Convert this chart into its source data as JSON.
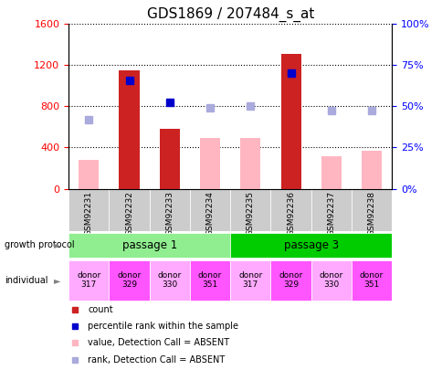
{
  "title": "GDS1869 / 207484_s_at",
  "samples": [
    "GSM92231",
    "GSM92232",
    "GSM92233",
    "GSM92234",
    "GSM92235",
    "GSM92236",
    "GSM92237",
    "GSM92238"
  ],
  "count_values": [
    null,
    1150,
    580,
    null,
    null,
    1310,
    null,
    null
  ],
  "count_absent_values": [
    280,
    null,
    null,
    490,
    490,
    null,
    320,
    370
  ],
  "percentile_present": [
    null,
    1050,
    840,
    null,
    null,
    1120,
    null,
    null
  ],
  "percentile_absent": [
    670,
    null,
    null,
    790,
    800,
    null,
    760,
    760
  ],
  "ylim_left": [
    0,
    1600
  ],
  "ylim_right": [
    0,
    100
  ],
  "yticks_left": [
    0,
    400,
    800,
    1200,
    1600
  ],
  "yticks_right": [
    0,
    25,
    50,
    75,
    100
  ],
  "ytick_labels_right": [
    "0%",
    "25%",
    "50%",
    "75%",
    "100%"
  ],
  "passage1_color": "#90EE90",
  "passage3_color": "#00CC00",
  "ind_colors": [
    "#FFAAFF",
    "#FF55FF",
    "#FFAAFF",
    "#FF55FF",
    "#FFAAFF",
    "#FF55FF",
    "#FFAAFF",
    "#FF55FF"
  ],
  "ind_labels": [
    "donor\n317",
    "donor\n329",
    "donor\n330",
    "donor\n351",
    "donor\n317",
    "donor\n329",
    "donor\n330",
    "donor\n351"
  ],
  "bar_width": 0.5,
  "color_count": "#CC2222",
  "color_count_absent": "#FFB6C1",
  "color_percentile_present": "#0000CC",
  "color_percentile_absent": "#AAAADD",
  "marker_size": 6,
  "xtick_bg": "#CCCCCC"
}
